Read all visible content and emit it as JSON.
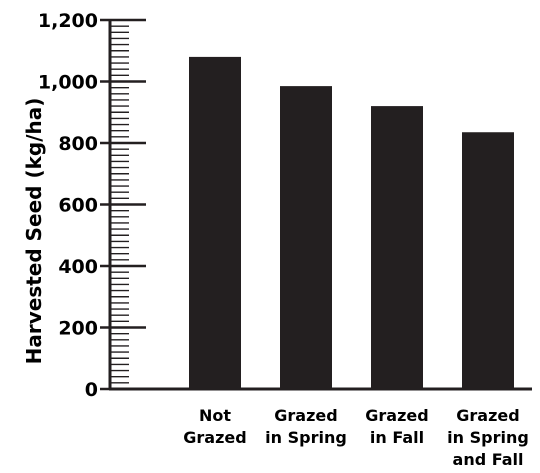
{
  "chart_data": {
    "type": "bar",
    "title": "",
    "xlabel": "",
    "ylabel": "Harvested Seed (kg/ha)",
    "ylim": [
      0,
      1200
    ],
    "yticks": [
      "0",
      "200",
      "400",
      "600",
      "800",
      "1,000",
      "1,200"
    ],
    "categories": [
      [
        "Not",
        "Grazed"
      ],
      [
        "Grazed",
        "in Spring"
      ],
      [
        "Grazed",
        "in Fall"
      ],
      [
        "Grazed",
        "in Spring",
        "and Fall"
      ]
    ],
    "values": [
      1080,
      985,
      920,
      835
    ],
    "bar_color": "#231f20",
    "axis_color": "#231f20",
    "grid": false,
    "minor_ticks": true
  }
}
